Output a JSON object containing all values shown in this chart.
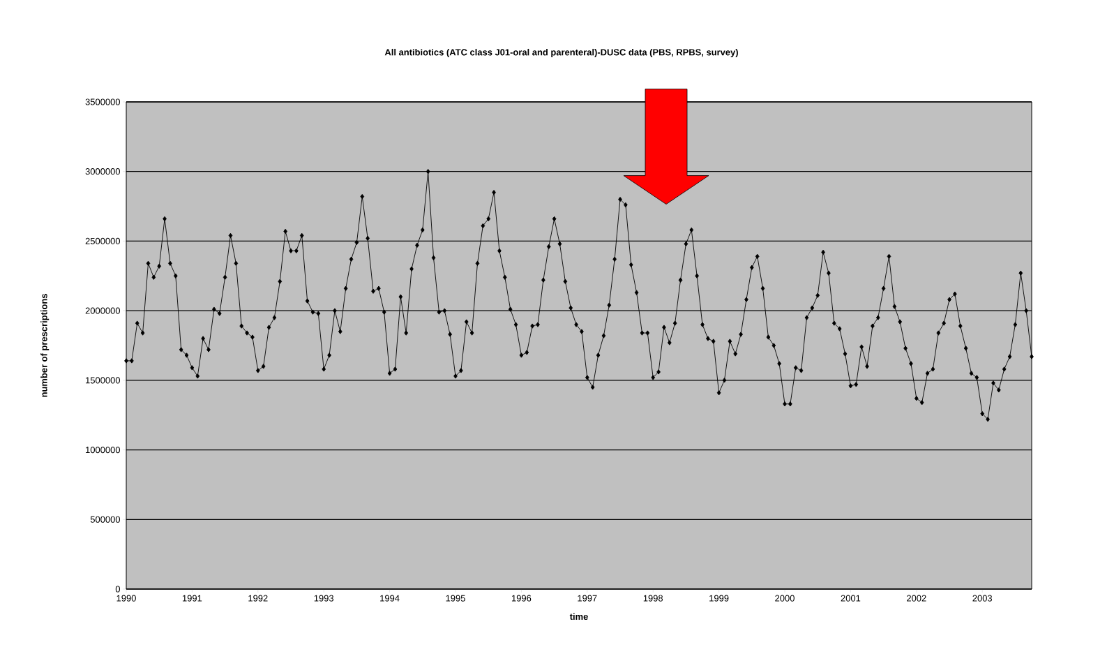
{
  "chart_data": {
    "type": "line",
    "title": "All antibiotics (ATC class J01-oral and parenteral)-DUSC data (PBS, RPBS, survey)",
    "xlabel": "time",
    "ylabel": "number of prescriptions",
    "x": [
      "1990-01",
      "1990-02",
      "1990-03",
      "1990-04",
      "1990-05",
      "1990-06",
      "1990-07",
      "1990-08",
      "1990-09",
      "1990-10",
      "1990-11",
      "1990-12",
      "1991-01",
      "1991-02",
      "1991-03",
      "1991-04",
      "1991-05",
      "1991-06",
      "1991-07",
      "1991-08",
      "1991-09",
      "1991-10",
      "1991-11",
      "1991-12",
      "1992-01",
      "1992-02",
      "1992-03",
      "1992-04",
      "1992-05",
      "1992-06",
      "1992-07",
      "1992-08",
      "1992-09",
      "1992-10",
      "1992-11",
      "1992-12",
      "1993-01",
      "1993-02",
      "1993-03",
      "1993-04",
      "1993-05",
      "1993-06",
      "1993-07",
      "1993-08",
      "1993-09",
      "1993-10",
      "1993-11",
      "1993-12",
      "1994-01",
      "1994-02",
      "1994-03",
      "1994-04",
      "1994-05",
      "1994-06",
      "1994-07",
      "1994-08",
      "1994-09",
      "1994-10",
      "1994-11",
      "1994-12",
      "1995-01",
      "1995-02",
      "1995-03",
      "1995-04",
      "1995-05",
      "1995-06",
      "1995-07",
      "1995-08",
      "1995-09",
      "1995-10",
      "1995-11",
      "1995-12",
      "1996-01",
      "1996-02",
      "1996-03",
      "1996-04",
      "1996-05",
      "1996-06",
      "1996-07",
      "1996-08",
      "1996-09",
      "1996-10",
      "1996-11",
      "1996-12",
      "1997-01",
      "1997-02",
      "1997-03",
      "1997-04",
      "1997-05",
      "1997-06",
      "1997-07",
      "1997-08",
      "1997-09",
      "1997-10",
      "1997-11",
      "1997-12",
      "1998-01",
      "1998-02",
      "1998-03",
      "1998-04",
      "1998-05",
      "1998-06",
      "1998-07",
      "1998-08",
      "1998-09",
      "1998-10",
      "1998-11",
      "1998-12",
      "1999-01",
      "1999-02",
      "1999-03",
      "1999-04",
      "1999-05",
      "1999-06",
      "1999-07",
      "1999-08",
      "1999-09",
      "1999-10",
      "1999-11",
      "1999-12",
      "2000-01",
      "2000-02",
      "2000-03",
      "2000-04",
      "2000-05",
      "2000-06",
      "2000-07",
      "2000-08",
      "2000-09",
      "2000-10",
      "2000-11",
      "2000-12",
      "2001-01",
      "2001-02",
      "2001-03",
      "2001-04",
      "2001-05",
      "2001-06",
      "2001-07",
      "2001-08",
      "2001-09",
      "2001-10",
      "2001-11",
      "2001-12",
      "2002-01",
      "2002-02",
      "2002-03",
      "2002-04",
      "2002-05",
      "2002-06",
      "2002-07",
      "2002-08",
      "2002-09",
      "2002-10",
      "2002-11",
      "2002-12",
      "2003-01",
      "2003-02",
      "2003-03",
      "2003-04",
      "2003-05",
      "2003-06",
      "2003-07",
      "2003-08",
      "2003-09",
      "2003-10"
    ],
    "values": [
      1640000,
      1640000,
      1910000,
      1840000,
      2340000,
      2240000,
      2320000,
      2660000,
      2340000,
      2250000,
      1720000,
      1680000,
      1590000,
      1530000,
      1800000,
      1720000,
      2010000,
      1980000,
      2240000,
      2540000,
      2340000,
      1890000,
      1840000,
      1810000,
      1570000,
      1600000,
      1880000,
      1950000,
      2210000,
      2570000,
      2430000,
      2430000,
      2540000,
      2070000,
      1990000,
      1980000,
      1580000,
      1680000,
      2000000,
      1850000,
      2160000,
      2370000,
      2490000,
      2820000,
      2520000,
      2140000,
      2160000,
      1990000,
      1550000,
      1580000,
      2100000,
      1840000,
      2300000,
      2470000,
      2580000,
      3000000,
      2380000,
      1990000,
      2000000,
      1830000,
      1530000,
      1570000,
      1920000,
      1840000,
      2340000,
      2610000,
      2660000,
      2850000,
      2430000,
      2240000,
      2010000,
      1900000,
      1680000,
      1700000,
      1890000,
      1900000,
      2220000,
      2460000,
      2660000,
      2480000,
      2210000,
      2020000,
      1900000,
      1850000,
      1520000,
      1450000,
      1680000,
      1820000,
      2040000,
      2370000,
      2800000,
      2760000,
      2330000,
      2130000,
      1840000,
      1840000,
      1520000,
      1560000,
      1880000,
      1770000,
      1910000,
      2220000,
      2480000,
      2580000,
      2250000,
      1900000,
      1800000,
      1780000,
      1410000,
      1500000,
      1780000,
      1690000,
      1830000,
      2080000,
      2310000,
      2390000,
      2160000,
      1810000,
      1750000,
      1620000,
      1330000,
      1330000,
      1590000,
      1570000,
      1950000,
      2020000,
      2110000,
      2420000,
      2270000,
      1910000,
      1870000,
      1690000,
      1460000,
      1470000,
      1740000,
      1600000,
      1890000,
      1950000,
      2160000,
      2390000,
      2030000,
      1920000,
      1730000,
      1620000,
      1370000,
      1340000,
      1550000,
      1580000,
      1840000,
      1910000,
      2080000,
      2120000,
      1890000,
      1730000,
      1550000,
      1520000,
      1260000,
      1220000,
      1480000,
      1430000,
      1580000,
      1670000,
      1900000,
      2270000,
      2000000,
      1670000
    ],
    "color": "#000000",
    "marker": "diamond",
    "line_style": "solid",
    "grid": "y",
    "xlim": [
      "1990-01",
      "2003-10"
    ],
    "xticks": [
      {
        "value": "1990-01",
        "label": "1990"
      },
      {
        "value": "1991-01",
        "label": "1991"
      },
      {
        "value": "1992-01",
        "label": "1992"
      },
      {
        "value": "1993-01",
        "label": "1993"
      },
      {
        "value": "1994-01",
        "label": "1994"
      },
      {
        "value": "1995-01",
        "label": "1995"
      },
      {
        "value": "1996-01",
        "label": "1996"
      },
      {
        "value": "1997-01",
        "label": "1997"
      },
      {
        "value": "1998-01",
        "label": "1998"
      },
      {
        "value": "1999-01",
        "label": "1999"
      },
      {
        "value": "2000-01",
        "label": "2000"
      },
      {
        "value": "2001-01",
        "label": "2001"
      },
      {
        "value": "2002-01",
        "label": "2002"
      },
      {
        "value": "2003-01",
        "label": "2003"
      }
    ],
    "ylim": [
      0,
      3500000
    ],
    "yticks": [
      0,
      500000,
      1000000,
      1500000,
      2000000,
      2500000,
      3000000,
      3500000
    ]
  }
}
